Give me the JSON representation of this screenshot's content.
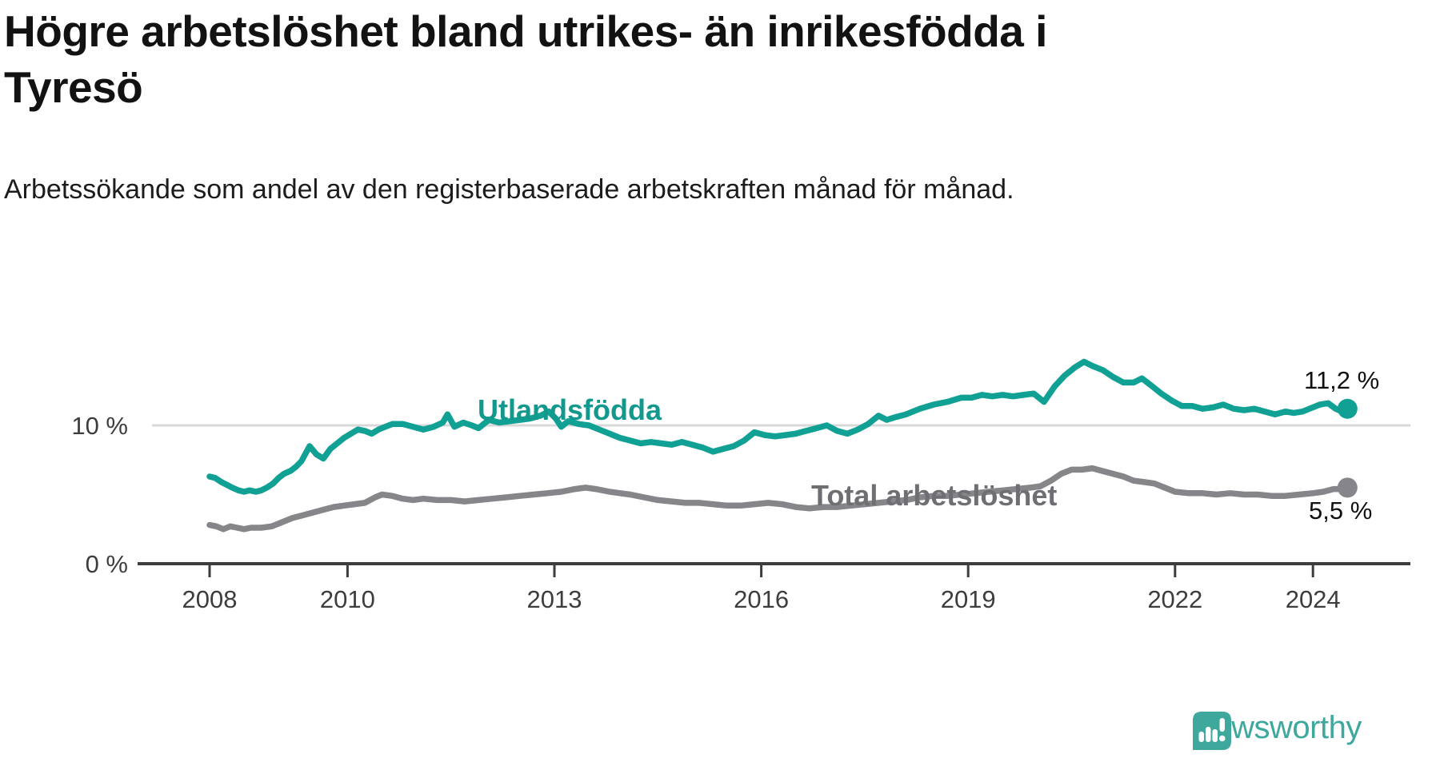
{
  "header": {
    "title_lines": [
      "Högre arbetslöshet bland utrikes- än inrikesfödda i",
      "Tyresö"
    ],
    "subtitle": "Arbetssökande som andel av den registerbaserade arbetskraften månad för månad."
  },
  "colors": {
    "foreign_line": "#11a094",
    "foreign_label": "#13988d",
    "total_line": "#85858a",
    "total_label": "#6e6e73",
    "axis": "#3d3d3d",
    "grid": "#d8d8d8",
    "end_label": "#111111",
    "logo": "#3ea89d",
    "background": "#ffffff"
  },
  "annotations": {
    "foreign_series_label": "Utlandsfödda",
    "total_series_label": "Total arbetslöshet",
    "foreign_end_value": "11,2 %",
    "total_end_value": "5,5 %"
  },
  "logo": {
    "name": "Newsworthy",
    "text": "Newsworthy"
  },
  "chart_data": {
    "type": "line",
    "x_unit": "decimal_year",
    "xlim": [
      2007.9,
      2025.4
    ],
    "ylim": [
      0,
      16
    ],
    "grid": "horizontal-10-only",
    "legend_position": "inline-labels",
    "x_axis": {
      "ticks": [
        {
          "value": 2008,
          "label": "2008"
        },
        {
          "value": 2010,
          "label": "2010"
        },
        {
          "value": 2013,
          "label": "2013"
        },
        {
          "value": 2016,
          "label": "2016"
        },
        {
          "value": 2019,
          "label": "2019"
        },
        {
          "value": 2022,
          "label": "2022"
        },
        {
          "value": 2024,
          "label": "2024"
        }
      ]
    },
    "y_axis": {
      "ticks": [
        {
          "value": 10,
          "label": "10 %",
          "gridline": true
        },
        {
          "value": 0,
          "label": "0 %",
          "gridline": false
        }
      ]
    },
    "series": [
      {
        "name": "Utlandsfödda",
        "color_key": "foreign_line",
        "end_label": "11,2 %",
        "end_value": 11.2,
        "points": [
          [
            2008.0,
            6.3
          ],
          [
            2008.08,
            6.2
          ],
          [
            2008.17,
            5.9
          ],
          [
            2008.25,
            5.7
          ],
          [
            2008.33,
            5.5
          ],
          [
            2008.42,
            5.3
          ],
          [
            2008.5,
            5.2
          ],
          [
            2008.58,
            5.3
          ],
          [
            2008.67,
            5.2
          ],
          [
            2008.75,
            5.3
          ],
          [
            2008.83,
            5.5
          ],
          [
            2008.92,
            5.8
          ],
          [
            2009.0,
            6.2
          ],
          [
            2009.08,
            6.5
          ],
          [
            2009.17,
            6.7
          ],
          [
            2009.25,
            7.0
          ],
          [
            2009.33,
            7.4
          ],
          [
            2009.45,
            8.5
          ],
          [
            2009.55,
            7.9
          ],
          [
            2009.65,
            7.6
          ],
          [
            2009.75,
            8.3
          ],
          [
            2009.85,
            8.7
          ],
          [
            2009.95,
            9.1
          ],
          [
            2010.05,
            9.4
          ],
          [
            2010.15,
            9.7
          ],
          [
            2010.25,
            9.6
          ],
          [
            2010.35,
            9.4
          ],
          [
            2010.45,
            9.7
          ],
          [
            2010.55,
            9.9
          ],
          [
            2010.65,
            10.1
          ],
          [
            2010.8,
            10.1
          ],
          [
            2010.95,
            9.9
          ],
          [
            2011.1,
            9.7
          ],
          [
            2011.25,
            9.9
          ],
          [
            2011.38,
            10.2
          ],
          [
            2011.45,
            10.8
          ],
          [
            2011.55,
            9.9
          ],
          [
            2011.68,
            10.2
          ],
          [
            2011.8,
            10.0
          ],
          [
            2011.9,
            9.8
          ],
          [
            2012.05,
            10.4
          ],
          [
            2012.2,
            10.2
          ],
          [
            2012.35,
            10.3
          ],
          [
            2012.5,
            10.4
          ],
          [
            2012.65,
            10.5
          ],
          [
            2012.8,
            10.7
          ],
          [
            2012.92,
            11.0
          ],
          [
            2013.02,
            10.5
          ],
          [
            2013.1,
            9.9
          ],
          [
            2013.2,
            10.3
          ],
          [
            2013.35,
            10.1
          ],
          [
            2013.5,
            10.0
          ],
          [
            2013.65,
            9.7
          ],
          [
            2013.8,
            9.4
          ],
          [
            2013.95,
            9.1
          ],
          [
            2014.1,
            8.9
          ],
          [
            2014.25,
            8.7
          ],
          [
            2014.4,
            8.8
          ],
          [
            2014.55,
            8.7
          ],
          [
            2014.7,
            8.6
          ],
          [
            2014.85,
            8.8
          ],
          [
            2015.0,
            8.6
          ],
          [
            2015.15,
            8.4
          ],
          [
            2015.3,
            8.1
          ],
          [
            2015.45,
            8.3
          ],
          [
            2015.6,
            8.5
          ],
          [
            2015.75,
            8.9
          ],
          [
            2015.9,
            9.5
          ],
          [
            2016.05,
            9.3
          ],
          [
            2016.2,
            9.2
          ],
          [
            2016.35,
            9.3
          ],
          [
            2016.5,
            9.4
          ],
          [
            2016.65,
            9.6
          ],
          [
            2016.8,
            9.8
          ],
          [
            2016.95,
            10.0
          ],
          [
            2017.1,
            9.6
          ],
          [
            2017.25,
            9.4
          ],
          [
            2017.4,
            9.7
          ],
          [
            2017.55,
            10.1
          ],
          [
            2017.7,
            10.7
          ],
          [
            2017.82,
            10.4
          ],
          [
            2017.95,
            10.6
          ],
          [
            2018.1,
            10.8
          ],
          [
            2018.3,
            11.2
          ],
          [
            2018.5,
            11.5
          ],
          [
            2018.7,
            11.7
          ],
          [
            2018.9,
            12.0
          ],
          [
            2019.05,
            12.0
          ],
          [
            2019.2,
            12.2
          ],
          [
            2019.35,
            12.1
          ],
          [
            2019.5,
            12.2
          ],
          [
            2019.65,
            12.1
          ],
          [
            2019.8,
            12.2
          ],
          [
            2019.95,
            12.3
          ],
          [
            2020.1,
            11.7
          ],
          [
            2020.25,
            12.8
          ],
          [
            2020.4,
            13.6
          ],
          [
            2020.55,
            14.2
          ],
          [
            2020.68,
            14.6
          ],
          [
            2020.8,
            14.3
          ],
          [
            2020.95,
            14.0
          ],
          [
            2021.1,
            13.5
          ],
          [
            2021.25,
            13.1
          ],
          [
            2021.4,
            13.1
          ],
          [
            2021.52,
            13.4
          ],
          [
            2021.65,
            12.9
          ],
          [
            2021.8,
            12.3
          ],
          [
            2021.95,
            11.8
          ],
          [
            2022.1,
            11.4
          ],
          [
            2022.25,
            11.4
          ],
          [
            2022.4,
            11.2
          ],
          [
            2022.55,
            11.3
          ],
          [
            2022.7,
            11.5
          ],
          [
            2022.85,
            11.2
          ],
          [
            2023.0,
            11.1
          ],
          [
            2023.15,
            11.2
          ],
          [
            2023.3,
            11.0
          ],
          [
            2023.45,
            10.8
          ],
          [
            2023.6,
            11.0
          ],
          [
            2023.72,
            10.9
          ],
          [
            2023.85,
            11.0
          ],
          [
            2023.95,
            11.2
          ],
          [
            2024.1,
            11.5
          ],
          [
            2024.22,
            11.6
          ],
          [
            2024.33,
            11.2
          ],
          [
            2024.42,
            11.0
          ],
          [
            2024.5,
            11.2
          ]
        ]
      },
      {
        "name": "Total arbetslöshet",
        "color_key": "total_line",
        "end_label": "5,5 %",
        "end_value": 5.5,
        "points": [
          [
            2008.0,
            2.8
          ],
          [
            2008.1,
            2.7
          ],
          [
            2008.2,
            2.5
          ],
          [
            2008.3,
            2.7
          ],
          [
            2008.4,
            2.6
          ],
          [
            2008.5,
            2.5
          ],
          [
            2008.6,
            2.6
          ],
          [
            2008.75,
            2.6
          ],
          [
            2008.9,
            2.7
          ],
          [
            2009.05,
            3.0
          ],
          [
            2009.2,
            3.3
          ],
          [
            2009.35,
            3.5
          ],
          [
            2009.5,
            3.7
          ],
          [
            2009.65,
            3.9
          ],
          [
            2009.8,
            4.1
          ],
          [
            2009.95,
            4.2
          ],
          [
            2010.1,
            4.3
          ],
          [
            2010.25,
            4.4
          ],
          [
            2010.4,
            4.8
          ],
          [
            2010.5,
            5.0
          ],
          [
            2010.65,
            4.9
          ],
          [
            2010.8,
            4.7
          ],
          [
            2010.95,
            4.6
          ],
          [
            2011.1,
            4.7
          ],
          [
            2011.3,
            4.6
          ],
          [
            2011.5,
            4.6
          ],
          [
            2011.7,
            4.5
          ],
          [
            2011.9,
            4.6
          ],
          [
            2012.1,
            4.7
          ],
          [
            2012.3,
            4.8
          ],
          [
            2012.5,
            4.9
          ],
          [
            2012.7,
            5.0
          ],
          [
            2012.9,
            5.1
          ],
          [
            2013.1,
            5.2
          ],
          [
            2013.3,
            5.4
          ],
          [
            2013.45,
            5.5
          ],
          [
            2013.6,
            5.4
          ],
          [
            2013.8,
            5.2
          ],
          [
            2013.95,
            5.1
          ],
          [
            2014.1,
            5.0
          ],
          [
            2014.3,
            4.8
          ],
          [
            2014.5,
            4.6
          ],
          [
            2014.7,
            4.5
          ],
          [
            2014.9,
            4.4
          ],
          [
            2015.1,
            4.4
          ],
          [
            2015.3,
            4.3
          ],
          [
            2015.5,
            4.2
          ],
          [
            2015.7,
            4.2
          ],
          [
            2015.9,
            4.3
          ],
          [
            2016.1,
            4.4
          ],
          [
            2016.3,
            4.3
          ],
          [
            2016.5,
            4.1
          ],
          [
            2016.7,
            4.0
          ],
          [
            2016.9,
            4.1
          ],
          [
            2017.1,
            4.1
          ],
          [
            2017.3,
            4.2
          ],
          [
            2017.5,
            4.3
          ],
          [
            2017.7,
            4.4
          ],
          [
            2017.9,
            4.5
          ],
          [
            2018.1,
            4.6
          ],
          [
            2018.3,
            4.8
          ],
          [
            2018.5,
            4.9
          ],
          [
            2018.7,
            4.9
          ],
          [
            2018.9,
            5.0
          ],
          [
            2019.1,
            5.1
          ],
          [
            2019.3,
            5.2
          ],
          [
            2019.5,
            5.3
          ],
          [
            2019.7,
            5.4
          ],
          [
            2019.9,
            5.5
          ],
          [
            2020.05,
            5.6
          ],
          [
            2020.2,
            6.0
          ],
          [
            2020.35,
            6.5
          ],
          [
            2020.5,
            6.8
          ],
          [
            2020.65,
            6.8
          ],
          [
            2020.8,
            6.9
          ],
          [
            2020.95,
            6.7
          ],
          [
            2021.1,
            6.5
          ],
          [
            2021.25,
            6.3
          ],
          [
            2021.4,
            6.0
          ],
          [
            2021.55,
            5.9
          ],
          [
            2021.7,
            5.8
          ],
          [
            2021.85,
            5.5
          ],
          [
            2022.0,
            5.2
          ],
          [
            2022.2,
            5.1
          ],
          [
            2022.4,
            5.1
          ],
          [
            2022.6,
            5.0
          ],
          [
            2022.8,
            5.1
          ],
          [
            2023.0,
            5.0
          ],
          [
            2023.2,
            5.0
          ],
          [
            2023.4,
            4.9
          ],
          [
            2023.6,
            4.9
          ],
          [
            2023.8,
            5.0
          ],
          [
            2024.0,
            5.1
          ],
          [
            2024.15,
            5.2
          ],
          [
            2024.3,
            5.4
          ],
          [
            2024.4,
            5.4
          ],
          [
            2024.5,
            5.5
          ]
        ]
      }
    ]
  }
}
